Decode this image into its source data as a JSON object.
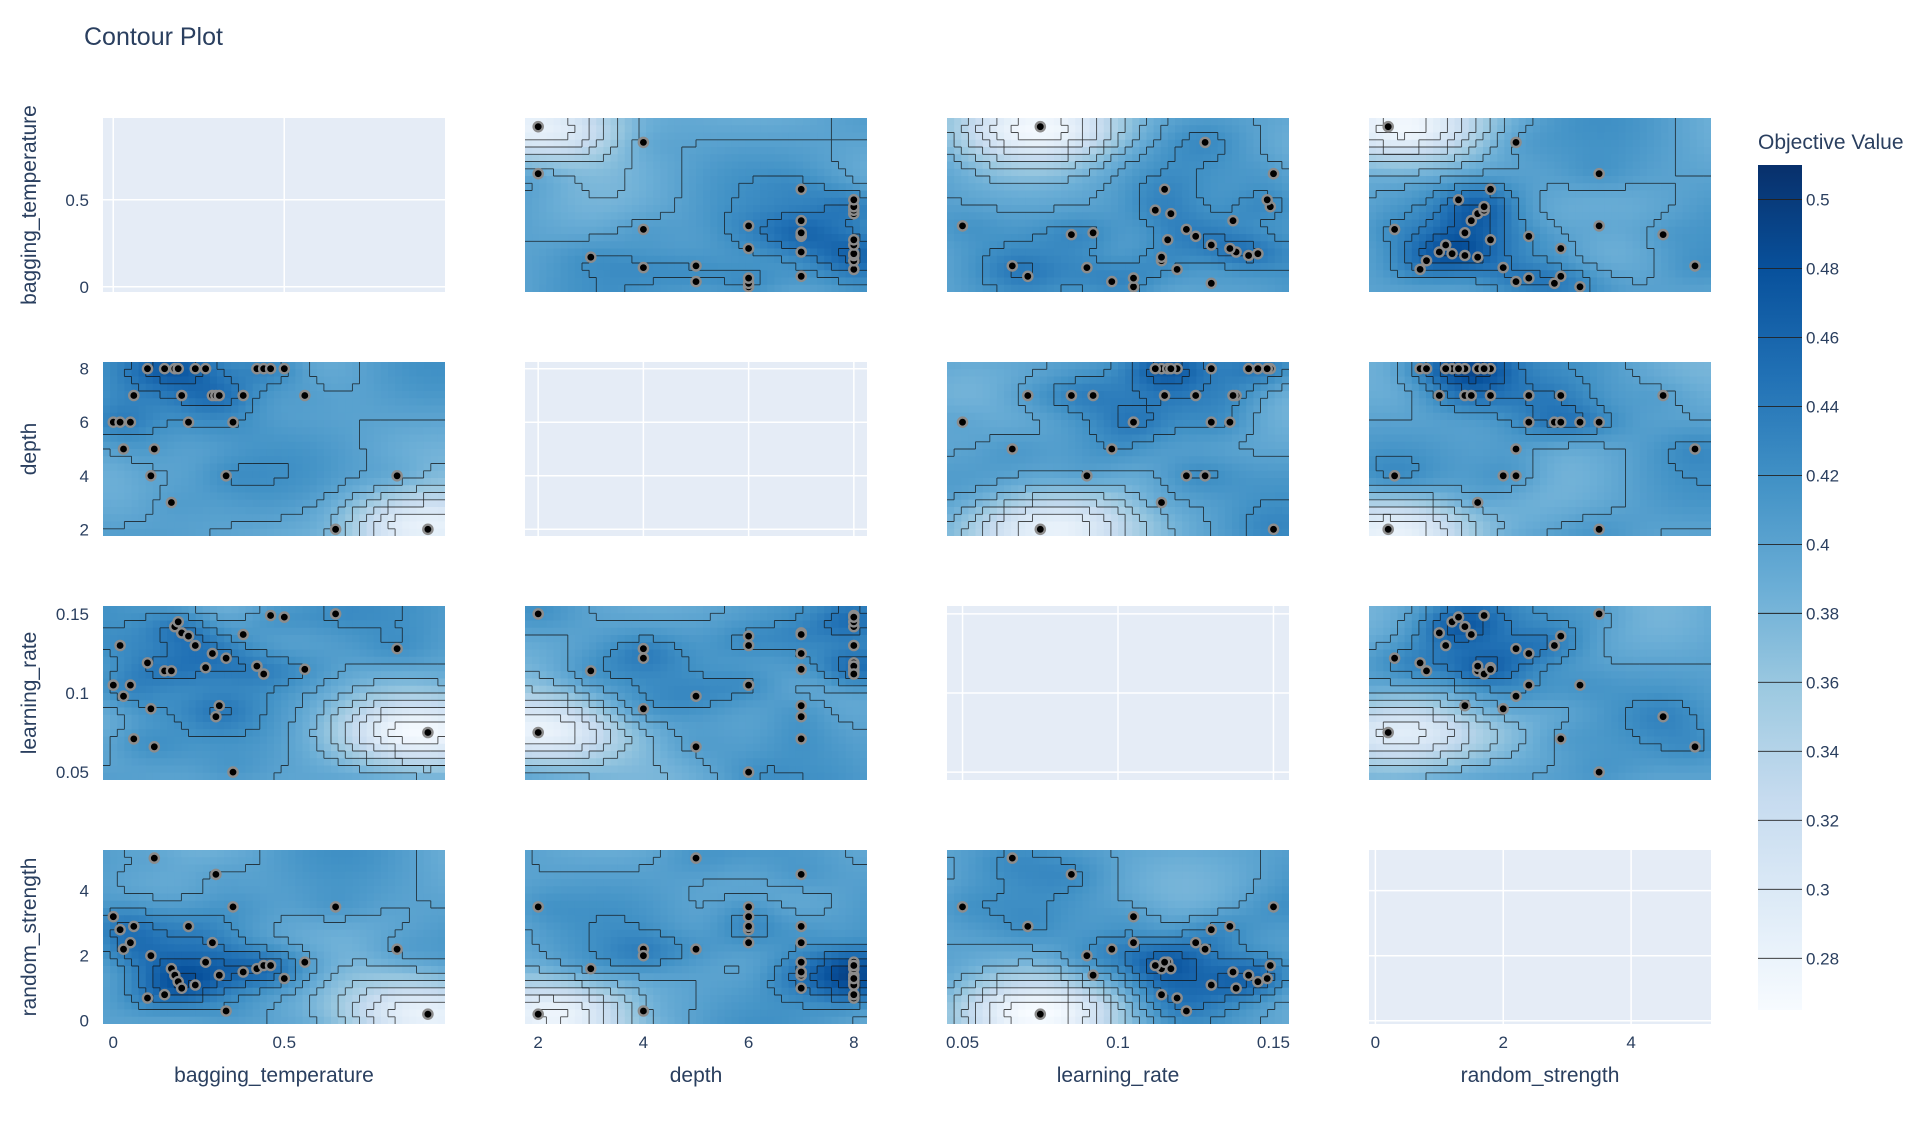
{
  "chart_data": {
    "type": "contour",
    "title": "Contour Plot",
    "params": [
      "bagging_temperature",
      "depth",
      "learning_rate",
      "random_strength"
    ],
    "axis_labels": [
      "bagging_temperature",
      "depth",
      "learning_rate",
      "random_strength"
    ],
    "ranges": [
      [
        -0.03,
        0.97
      ],
      [
        1.75,
        8.25
      ],
      [
        0.045,
        0.155
      ],
      [
        -0.1,
        5.25
      ]
    ],
    "ticks": [
      {
        "values": [
          0,
          0.5
        ],
        "labels": [
          "0",
          "0.5"
        ]
      },
      {
        "values": [
          2,
          4,
          6,
          8
        ],
        "labels": [
          "2",
          "4",
          "6",
          "8"
        ]
      },
      {
        "values": [
          0.05,
          0.1,
          0.15
        ],
        "labels": [
          "0.05",
          "0.1",
          "0.15"
        ]
      },
      {
        "values": [
          0,
          2,
          4
        ],
        "labels": [
          "0",
          "2",
          "4"
        ]
      }
    ],
    "trials": [
      {
        "bagging_temperature": 0.92,
        "depth": 2,
        "learning_rate": 0.075,
        "random_strength": 0.2
      },
      {
        "bagging_temperature": 0.65,
        "depth": 2,
        "learning_rate": 0.15,
        "random_strength": 3.5
      },
      {
        "bagging_temperature": 0.83,
        "depth": 4,
        "learning_rate": 0.128,
        "random_strength": 2.2
      },
      {
        "bagging_temperature": 0.12,
        "depth": 5,
        "learning_rate": 0.066,
        "random_strength": 5.0
      },
      {
        "bagging_temperature": 0.0,
        "depth": 6,
        "learning_rate": 0.105,
        "random_strength": 3.2
      },
      {
        "bagging_temperature": 0.02,
        "depth": 6,
        "learning_rate": 0.13,
        "random_strength": 2.8
      },
      {
        "bagging_temperature": 0.05,
        "depth": 6,
        "learning_rate": 0.105,
        "random_strength": 2.4
      },
      {
        "bagging_temperature": 0.06,
        "depth": 7,
        "learning_rate": 0.071,
        "random_strength": 2.9
      },
      {
        "bagging_temperature": 0.1,
        "depth": 8,
        "learning_rate": 0.119,
        "random_strength": 0.7
      },
      {
        "bagging_temperature": 0.11,
        "depth": 4,
        "learning_rate": 0.09,
        "random_strength": 2.0
      },
      {
        "bagging_temperature": 0.15,
        "depth": 8,
        "learning_rate": 0.114,
        "random_strength": 0.8
      },
      {
        "bagging_temperature": 0.17,
        "depth": 3,
        "learning_rate": 0.114,
        "random_strength": 1.6
      },
      {
        "bagging_temperature": 0.18,
        "depth": 8,
        "learning_rate": 0.142,
        "random_strength": 1.4
      },
      {
        "bagging_temperature": 0.19,
        "depth": 8,
        "learning_rate": 0.145,
        "random_strength": 1.2
      },
      {
        "bagging_temperature": 0.2,
        "depth": 7,
        "learning_rate": 0.138,
        "random_strength": 1.0
      },
      {
        "bagging_temperature": 0.22,
        "depth": 6,
        "learning_rate": 0.136,
        "random_strength": 2.9
      },
      {
        "bagging_temperature": 0.24,
        "depth": 8,
        "learning_rate": 0.13,
        "random_strength": 1.1
      },
      {
        "bagging_temperature": 0.27,
        "depth": 8,
        "learning_rate": 0.116,
        "random_strength": 1.8
      },
      {
        "bagging_temperature": 0.29,
        "depth": 7,
        "learning_rate": 0.125,
        "random_strength": 2.4
      },
      {
        "bagging_temperature": 0.3,
        "depth": 7,
        "learning_rate": 0.085,
        "random_strength": 4.5
      },
      {
        "bagging_temperature": 0.31,
        "depth": 7,
        "learning_rate": 0.092,
        "random_strength": 1.4
      },
      {
        "bagging_temperature": 0.33,
        "depth": 4,
        "learning_rate": 0.122,
        "random_strength": 0.3
      },
      {
        "bagging_temperature": 0.35,
        "depth": 6,
        "learning_rate": 0.05,
        "random_strength": 3.5
      },
      {
        "bagging_temperature": 0.38,
        "depth": 7,
        "learning_rate": 0.137,
        "random_strength": 1.5
      },
      {
        "bagging_temperature": 0.42,
        "depth": 8,
        "learning_rate": 0.117,
        "random_strength": 1.6
      },
      {
        "bagging_temperature": 0.44,
        "depth": 8,
        "learning_rate": 0.112,
        "random_strength": 1.7
      },
      {
        "bagging_temperature": 0.46,
        "depth": 8,
        "learning_rate": 0.149,
        "random_strength": 1.7
      },
      {
        "bagging_temperature": 0.5,
        "depth": 8,
        "learning_rate": 0.148,
        "random_strength": 1.3
      },
      {
        "bagging_temperature": 0.56,
        "depth": 7,
        "learning_rate": 0.115,
        "random_strength": 1.8
      },
      {
        "bagging_temperature": 0.03,
        "depth": 5,
        "learning_rate": 0.098,
        "random_strength": 2.2
      }
    ],
    "colorbar": {
      "title": "Objective Value",
      "range": [
        0.265,
        0.51
      ],
      "tick_values": [
        0.28,
        0.3,
        0.32,
        0.34,
        0.36,
        0.38,
        0.4,
        0.42,
        0.44,
        0.46,
        0.48,
        0.5
      ],
      "tick_labels": [
        "0.28",
        "0.3",
        "0.32",
        "0.34",
        "0.36",
        "0.38",
        "0.4",
        "0.42",
        "0.44",
        "0.46",
        "0.48",
        "0.5"
      ],
      "colorscale": [
        [
          0,
          "#f7fbff"
        ],
        [
          0.125,
          "#deebf7"
        ],
        [
          0.25,
          "#c6dbef"
        ],
        [
          0.375,
          "#9ecae1"
        ],
        [
          0.5,
          "#6baed6"
        ],
        [
          0.625,
          "#4292c6"
        ],
        [
          0.75,
          "#2171b5"
        ],
        [
          0.875,
          "#08519c"
        ],
        [
          1,
          "#08306b"
        ]
      ]
    },
    "grid": true,
    "diagonal_cells": "empty"
  }
}
